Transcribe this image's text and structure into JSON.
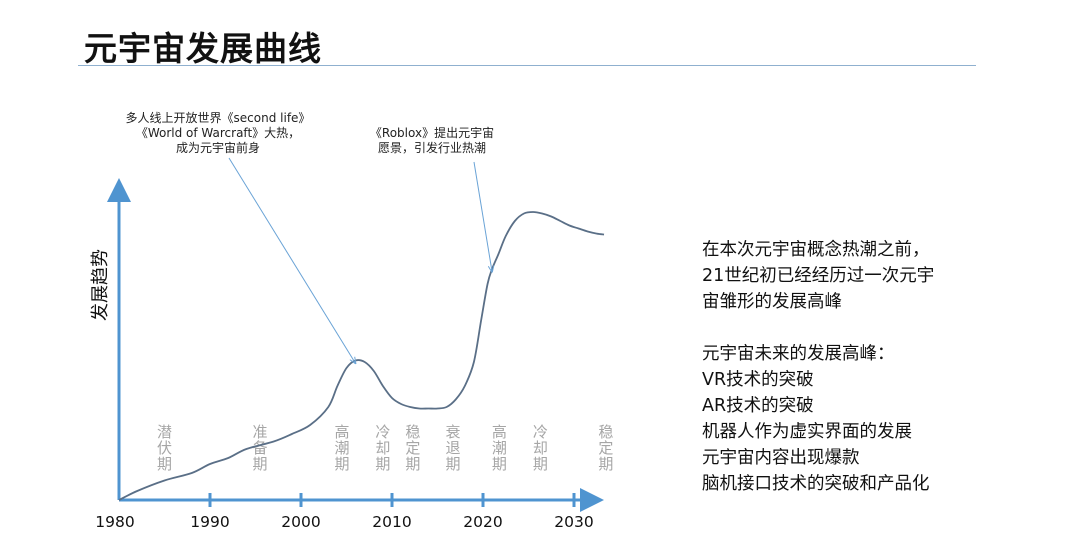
{
  "page": {
    "title": "元宇宙发展曲线"
  },
  "chart_data": {
    "type": "line",
    "ylabel": "发展趋势",
    "xlim": [
      1980,
      2035
    ],
    "ylim": [
      0,
      1
    ],
    "x_ticks": [
      1980,
      1990,
      2000,
      2010,
      2020,
      2030
    ],
    "series": [
      {
        "x": [
          1980,
          1982,
          1985,
          1988,
          1990,
          1992,
          1994,
          1997,
          1999,
          2001,
          2003,
          2004,
          2005,
          2006,
          2007,
          2008,
          2009,
          2010,
          2011,
          2012,
          2013,
          2014,
          2015,
          2016,
          2017,
          2018,
          2019,
          2019.8,
          2020.5,
          2021,
          2021.7,
          2022.5,
          2023.5,
          2024.5,
          2025.5,
          2026.5,
          2027.5,
          2028.5,
          2029.5,
          2030.5,
          2031.5,
          2032.5,
          2033.3
        ],
        "y": [
          0.0,
          0.03,
          0.065,
          0.09,
          0.12,
          0.14,
          0.17,
          0.195,
          0.22,
          0.25,
          0.31,
          0.38,
          0.44,
          0.465,
          0.46,
          0.43,
          0.38,
          0.34,
          0.32,
          0.31,
          0.305,
          0.305,
          0.305,
          0.31,
          0.335,
          0.38,
          0.46,
          0.6,
          0.72,
          0.77,
          0.82,
          0.88,
          0.93,
          0.955,
          0.96,
          0.955,
          0.945,
          0.93,
          0.915,
          0.905,
          0.895,
          0.888,
          0.885
        ]
      }
    ],
    "phases": [
      {
        "label": "潜伏期",
        "x": 1985
      },
      {
        "label": "准备期",
        "x": 1995.5
      },
      {
        "label": "高潮期",
        "x": 2004.5
      },
      {
        "label": "冷却期",
        "x": 2009
      },
      {
        "label": "稳定期",
        "x": 2012.3
      },
      {
        "label": "衰退期",
        "x": 2016.7
      },
      {
        "label": "高潮期",
        "x": 2021.8
      },
      {
        "label": "冷却期",
        "x": 2026.3
      },
      {
        "label": "稳定期",
        "x": 2033.5
      }
    ],
    "annotations": [
      {
        "lines": [
          "多人线上开放世界《second life》",
          "《World of Warcraft》大热，",
          "成为元宇宙前身"
        ],
        "target_x": 2006
      },
      {
        "lines": [
          "《Roblox》提出元宇宙",
          "愿景，引发行业热潮"
        ],
        "target_x": 2021
      }
    ]
  },
  "side_notes": {
    "para1": [
      "在本次元宇宙概念热潮之前，",
      "21世纪初已经经历过一次元宇",
      "宙雏形的发展高峰"
    ],
    "para2": [
      "元宇宙未来的发展高峰：",
      "VR技术的突破",
      "AR技术的突破",
      "机器人作为虚实界面的发展",
      "元宇宙内容出现爆款",
      "脑机接口技术的突破和产品化"
    ]
  }
}
